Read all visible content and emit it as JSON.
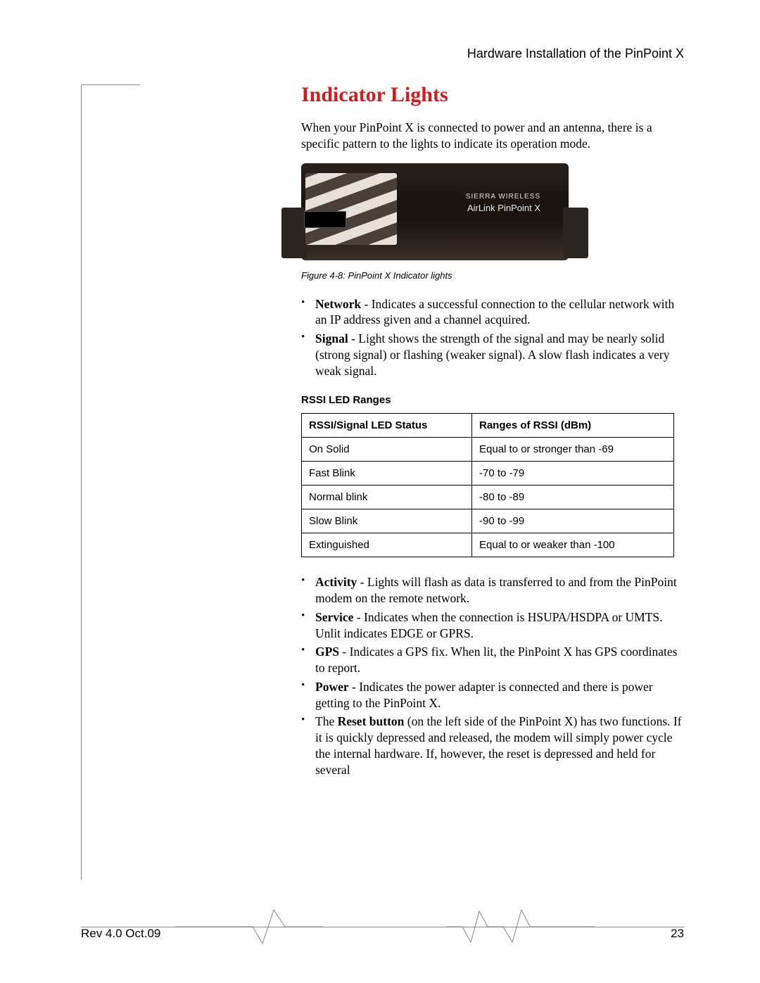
{
  "header": {
    "text": "Hardware Installation of the PinPoint X"
  },
  "section": {
    "title": "Indicator Lights",
    "intro": "When your PinPoint X is connected to power and an antenna, there is a specific pattern to the lights to indicate its operation mode."
  },
  "device": {
    "brand": "SIERRA WIRELESS",
    "model": "AirLink PinPoint X"
  },
  "figure": {
    "caption": "Figure 4-8: PinPoint X Indicator lights"
  },
  "bullets_top": [
    {
      "term": "Network",
      "text": " - Indicates a successful connection to the cellular network with an IP address given and a channel acquired."
    },
    {
      "term": "Signal",
      "text": " - Light shows the strength of the signal and may be nearly solid (strong signal) or flashing (weaker signal). A slow flash indicates a very weak signal."
    }
  ],
  "table": {
    "title": "RSSI LED Ranges",
    "columns": [
      "RSSI/Signal LED Status",
      "Ranges of RSSI (dBm)"
    ],
    "rows": [
      [
        "On Solid",
        "Equal to or stronger than -69"
      ],
      [
        "Fast Blink",
        "-70 to -79"
      ],
      [
        "Normal blink",
        "-80 to -89"
      ],
      [
        "Slow Blink",
        "-90 to -99"
      ],
      [
        "Extinguished",
        "Equal to or weaker than -100"
      ]
    ]
  },
  "bullets_bottom": [
    {
      "term": "Activity",
      "text": " - Lights will flash as data is transferred to and from the PinPoint modem on the remote network."
    },
    {
      "term": "Service",
      "text": " - Indicates when the connection is HSUPA/HSDPA or UMTS. Unlit indicates EDGE or GPRS."
    },
    {
      "term": "GPS",
      "text": " - Indicates a GPS fix. When lit, the PinPoint X has GPS coordinates to report."
    },
    {
      "term": "Power",
      "text": " - Indicates the power adapter is connected and there is power getting to the PinPoint X."
    },
    {
      "term_prefix": "The ",
      "term": "Reset button",
      "text": " (on the left side of the PinPoint X) has two functions. If it is quickly depressed and released, the modem will simply power cycle the internal hardware. If, however, the reset is depressed and held for several"
    }
  ],
  "footer": {
    "rev": "Rev 4.0  Oct.09",
    "page": "23"
  },
  "colors": {
    "heading": "#d31b1b",
    "text": "#000000",
    "rule": "#888888",
    "background": "#ffffff"
  }
}
